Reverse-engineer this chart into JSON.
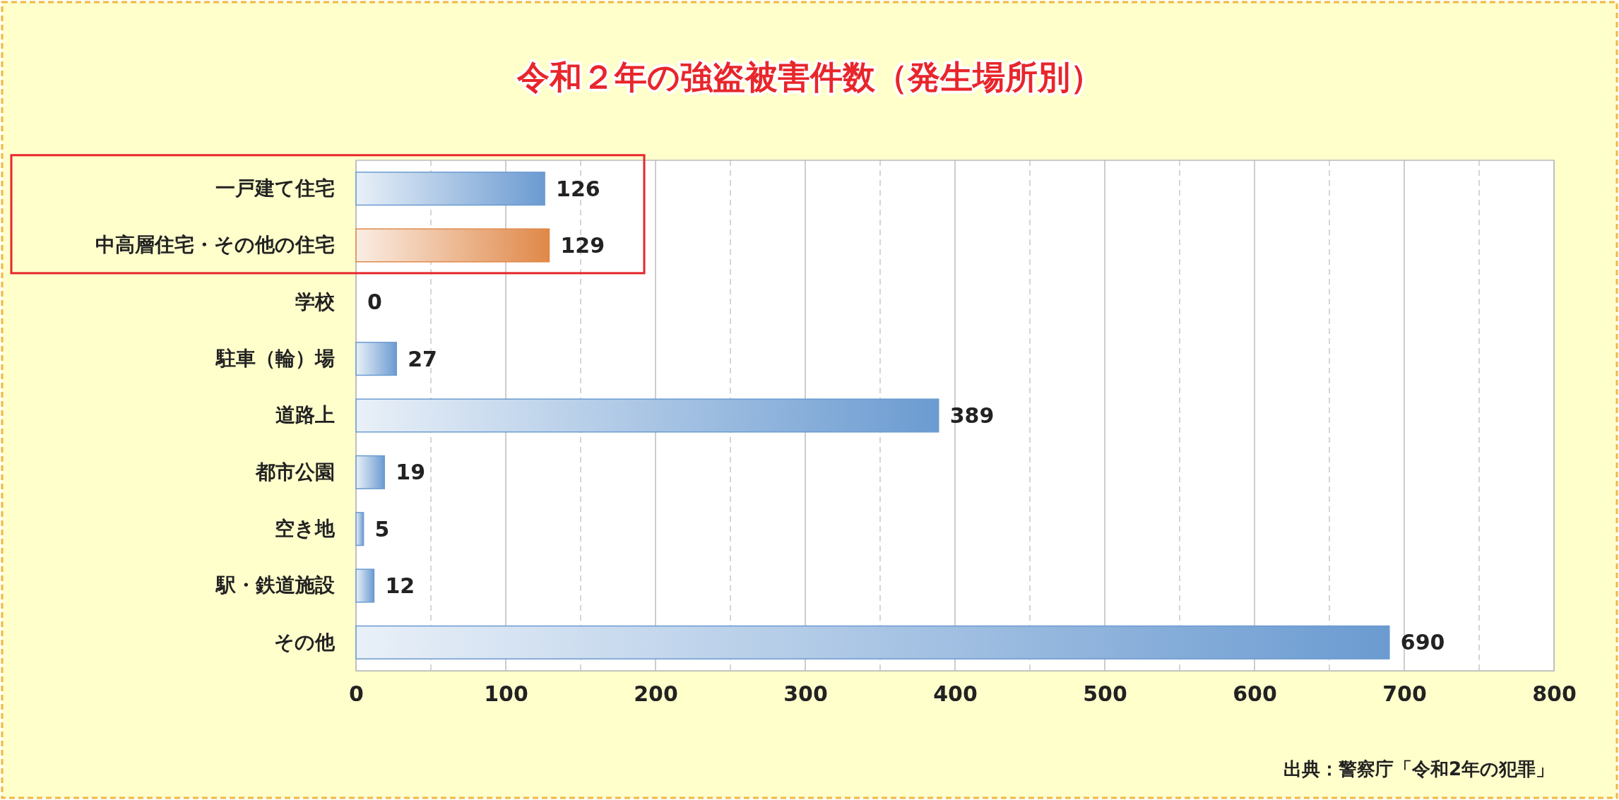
{
  "chart_data": {
    "type": "bar",
    "orientation": "horizontal",
    "title": "令和２年の強盗被害件数（発生場所別）",
    "categories": [
      "一戸建て住宅",
      "中高層住宅・その他の住宅",
      "学校",
      "駐車（輪）場",
      "道路上",
      "都市公園",
      "空き地",
      "駅・鉄道施設",
      "その他"
    ],
    "values": [
      126,
      129,
      0,
      27,
      389,
      19,
      5,
      12,
      690
    ],
    "colors": [
      "#6b9bd1",
      "#e08848",
      "#6b9bd1",
      "#6b9bd1",
      "#6b9bd1",
      "#6b9bd1",
      "#6b9bd1",
      "#6b9bd1",
      "#6b9bd1"
    ],
    "xlim": [
      0,
      800
    ],
    "xticks": [
      0,
      {
        "value": 50,
        "label": null
      },
      100,
      {
        "value": 150,
        "label": null
      },
      200,
      {
        "value": 250,
        "label": null
      },
      300,
      {
        "value": 350,
        "label": null
      },
      400,
      {
        "value": 450,
        "label": null
      },
      500,
      {
        "value": 550,
        "label": null
      },
      600,
      {
        "value": 650,
        "label": null
      },
      700,
      {
        "value": 750,
        "label": null
      },
      800
    ],
    "grid": "x",
    "data_labels": true,
    "annotations": [
      "出典：警察庁「令和2年の犯罪」"
    ]
  }
}
